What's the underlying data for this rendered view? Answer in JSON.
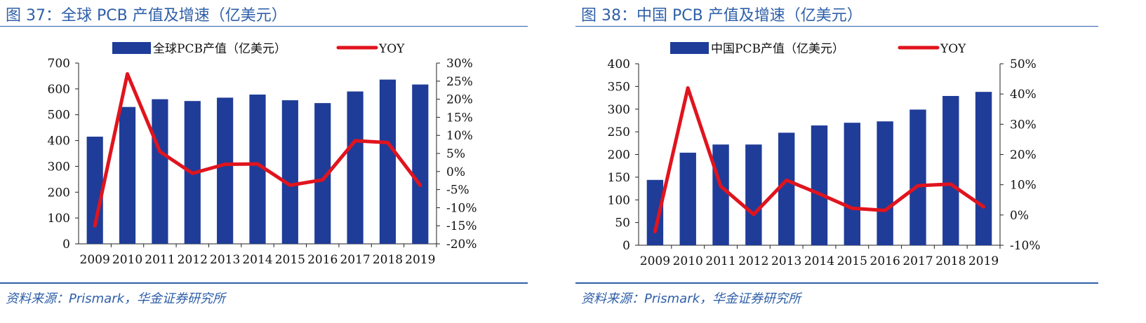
{
  "colors": {
    "bar": "#1f3c98",
    "line": "#e0141e",
    "title": "#2e5fa8",
    "axis": "#222222"
  },
  "chart_data": [
    {
      "type": "bar+line",
      "title": "图 37：全球 PCB 产值及增速（亿美元）",
      "source": "资料来源：Prismark，华金证券研究所",
      "categories": [
        "2009",
        "2010",
        "2011",
        "2012",
        "2013",
        "2014",
        "2015",
        "2016",
        "2017",
        "2018",
        "2019"
      ],
      "series": [
        {
          "name": "全球PCB产值（亿美元）",
          "type": "bar",
          "axis": "left",
          "values": [
            415,
            530,
            560,
            553,
            566,
            578,
            556,
            545,
            590,
            636,
            617
          ]
        },
        {
          "name": "YOY",
          "type": "line",
          "axis": "right",
          "values": [
            -15,
            27,
            5.5,
            -0.5,
            2,
            2.1,
            -3.8,
            -2.3,
            8.5,
            8,
            -3.8
          ]
        }
      ],
      "ylim_left": [
        0,
        700
      ],
      "yticks_left": [
        0,
        100,
        200,
        300,
        400,
        500,
        600,
        700
      ],
      "yticklabels_left": [
        "0",
        "100",
        "200",
        "300",
        "400",
        "500",
        "600",
        "700"
      ],
      "ylim_right": [
        -20,
        30
      ],
      "yticks_right": [
        -20,
        -15,
        -10,
        -5,
        0,
        5,
        10,
        15,
        20,
        25,
        30
      ],
      "yticklabels_right": [
        "-20%",
        "-15%",
        "-10%",
        "-5%",
        "0%",
        "5%",
        "10%",
        "15%",
        "20%",
        "25%",
        "30%"
      ],
      "legend_position": "top-center"
    },
    {
      "type": "bar+line",
      "title": "图 38：中国 PCB 产值及增速（亿美元）",
      "source": "资料来源：Prismark，华金证券研究所",
      "categories": [
        "2009",
        "2010",
        "2011",
        "2012",
        "2013",
        "2014",
        "2015",
        "2016",
        "2017",
        "2018",
        "2019"
      ],
      "series": [
        {
          "name": "中国PCB产值（亿美元）",
          "type": "bar",
          "axis": "left",
          "values": [
            144,
            204,
            222,
            222,
            248,
            264,
            270,
            273,
            299,
            329,
            338
          ]
        },
        {
          "name": "YOY",
          "type": "line",
          "axis": "right",
          "values": [
            -5.5,
            42,
            9.5,
            0.2,
            11.5,
            7,
            2.2,
            1.5,
            9.7,
            10.2,
            2.7
          ]
        }
      ],
      "ylim_left": [
        0,
        400
      ],
      "yticks_left": [
        0,
        50,
        100,
        150,
        200,
        250,
        300,
        350,
        400
      ],
      "yticklabels_left": [
        "0",
        "50",
        "100",
        "150",
        "200",
        "250",
        "300",
        "350",
        "400"
      ],
      "ylim_right": [
        -10,
        50
      ],
      "yticks_right": [
        -10,
        0,
        10,
        20,
        30,
        40,
        50
      ],
      "yticklabels_right": [
        "-10%",
        "0%",
        "10%",
        "20%",
        "30%",
        "40%",
        "50%"
      ],
      "legend_position": "top-center"
    }
  ]
}
